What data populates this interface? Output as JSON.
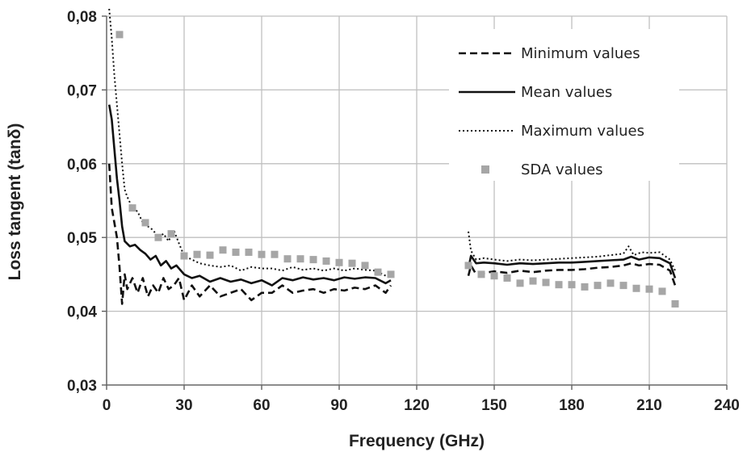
{
  "chart_data": {
    "type": "line",
    "title": "",
    "xlabel": "Frequency (GHz)",
    "ylabel": "Loss tangent (tanδ)",
    "xlim": [
      0,
      240
    ],
    "ylim": [
      0.03,
      0.08
    ],
    "x_ticks": [
      "0",
      "30",
      "60",
      "90",
      "120",
      "150",
      "180",
      "210",
      "240"
    ],
    "y_ticks": [
      "0,03",
      "0,04",
      "0,05",
      "0,06",
      "0,07",
      "0,08"
    ],
    "grid": true,
    "legend_position": "top-right",
    "series": [
      {
        "name": "Minimum values",
        "style": "dashed",
        "color": "#111111",
        "segments": [
          [
            [
              1,
              0.06
            ],
            [
              2,
              0.054
            ],
            [
              3,
              0.052
            ],
            [
              4,
              0.05
            ],
            [
              5,
              0.046
            ],
            [
              6,
              0.041
            ],
            [
              7,
              0.045
            ],
            [
              8,
              0.043
            ],
            [
              10,
              0.0445
            ],
            [
              12,
              0.0425
            ],
            [
              14,
              0.0445
            ],
            [
              16,
              0.042
            ],
            [
              18,
              0.0435
            ],
            [
              20,
              0.0425
            ],
            [
              22,
              0.0445
            ],
            [
              24,
              0.043
            ],
            [
              26,
              0.0435
            ],
            [
              28,
              0.0445
            ],
            [
              30,
              0.0415
            ],
            [
              33,
              0.0435
            ],
            [
              36,
              0.042
            ],
            [
              40,
              0.0435
            ],
            [
              44,
              0.042
            ],
            [
              48,
              0.0425
            ],
            [
              52,
              0.043
            ],
            [
              56,
              0.0415
            ],
            [
              60,
              0.0425
            ],
            [
              64,
              0.0425
            ],
            [
              68,
              0.0435
            ],
            [
              72,
              0.0425
            ],
            [
              76,
              0.0428
            ],
            [
              80,
              0.043
            ],
            [
              84,
              0.0425
            ],
            [
              88,
              0.043
            ],
            [
              92,
              0.0428
            ],
            [
              96,
              0.0432
            ],
            [
              100,
              0.043
            ],
            [
              104,
              0.0435
            ],
            [
              108,
              0.0425
            ],
            [
              110,
              0.0435
            ]
          ],
          [
            [
              140,
              0.0448
            ],
            [
              141,
              0.0462
            ],
            [
              143,
              0.045
            ],
            [
              146,
              0.0452
            ],
            [
              150,
              0.0454
            ],
            [
              155,
              0.0452
            ],
            [
              160,
              0.0455
            ],
            [
              165,
              0.0453
            ],
            [
              170,
              0.0455
            ],
            [
              175,
              0.0456
            ],
            [
              180,
              0.0456
            ],
            [
              185,
              0.0457
            ],
            [
              190,
              0.0459
            ],
            [
              195,
              0.046
            ],
            [
              200,
              0.0462
            ],
            [
              203,
              0.0465
            ],
            [
              206,
              0.0462
            ],
            [
              210,
              0.0464
            ],
            [
              214,
              0.0463
            ],
            [
              218,
              0.0455
            ],
            [
              220,
              0.0435
            ]
          ]
        ]
      },
      {
        "name": "Mean values",
        "style": "solid",
        "color": "#111111",
        "segments": [
          [
            [
              1,
              0.068
            ],
            [
              2,
              0.066
            ],
            [
              3,
              0.062
            ],
            [
              4,
              0.058
            ],
            [
              5,
              0.055
            ],
            [
              6,
              0.0515
            ],
            [
              7,
              0.0495
            ],
            [
              9,
              0.0488
            ],
            [
              11,
              0.049
            ],
            [
              13,
              0.0483
            ],
            [
              15,
              0.0478
            ],
            [
              17,
              0.047
            ],
            [
              19,
              0.0475
            ],
            [
              21,
              0.0462
            ],
            [
              23,
              0.0468
            ],
            [
              25,
              0.0458
            ],
            [
              27,
              0.0462
            ],
            [
              30,
              0.045
            ],
            [
              33,
              0.0445
            ],
            [
              36,
              0.0448
            ],
            [
              40,
              0.044
            ],
            [
              44,
              0.0445
            ],
            [
              48,
              0.044
            ],
            [
              52,
              0.0443
            ],
            [
              56,
              0.0438
            ],
            [
              60,
              0.0442
            ],
            [
              64,
              0.0435
            ],
            [
              68,
              0.0445
            ],
            [
              72,
              0.0442
            ],
            [
              76,
              0.0446
            ],
            [
              80,
              0.0443
            ],
            [
              84,
              0.0445
            ],
            [
              88,
              0.0442
            ],
            [
              92,
              0.0446
            ],
            [
              96,
              0.0444
            ],
            [
              100,
              0.0446
            ],
            [
              104,
              0.0445
            ],
            [
              108,
              0.0438
            ],
            [
              110,
              0.0442
            ]
          ],
          [
            [
              140,
              0.0458
            ],
            [
              141,
              0.0475
            ],
            [
              143,
              0.0465
            ],
            [
              146,
              0.0466
            ],
            [
              150,
              0.0465
            ],
            [
              155,
              0.0463
            ],
            [
              160,
              0.0465
            ],
            [
              165,
              0.0464
            ],
            [
              170,
              0.0465
            ],
            [
              175,
              0.0466
            ],
            [
              180,
              0.0466
            ],
            [
              185,
              0.0467
            ],
            [
              190,
              0.0468
            ],
            [
              195,
              0.0469
            ],
            [
              200,
              0.047
            ],
            [
              203,
              0.0474
            ],
            [
              206,
              0.047
            ],
            [
              210,
              0.0473
            ],
            [
              214,
              0.0472
            ],
            [
              218,
              0.0465
            ],
            [
              220,
              0.0445
            ]
          ]
        ]
      },
      {
        "name": "Maximum values",
        "style": "dotted",
        "color": "#111111",
        "segments": [
          [
            [
              1,
              0.081
            ],
            [
              2,
              0.077
            ],
            [
              3,
              0.072
            ],
            [
              4,
              0.068
            ],
            [
              5,
              0.064
            ],
            [
              6,
              0.06
            ],
            [
              7,
              0.0565
            ],
            [
              8,
              0.0555
            ],
            [
              10,
              0.054
            ],
            [
              12,
              0.0535
            ],
            [
              14,
              0.052
            ],
            [
              16,
              0.0515
            ],
            [
              18,
              0.051
            ],
            [
              20,
              0.05
            ],
            [
              22,
              0.0505
            ],
            [
              24,
              0.0495
            ],
            [
              26,
              0.051
            ],
            [
              28,
              0.0492
            ],
            [
              30,
              0.0475
            ],
            [
              33,
              0.047
            ],
            [
              36,
              0.0465
            ],
            [
              40,
              0.0462
            ],
            [
              44,
              0.046
            ],
            [
              48,
              0.0462
            ],
            [
              52,
              0.0455
            ],
            [
              56,
              0.046
            ],
            [
              60,
              0.0458
            ],
            [
              64,
              0.0458
            ],
            [
              68,
              0.0455
            ],
            [
              72,
              0.046
            ],
            [
              76,
              0.0456
            ],
            [
              80,
              0.0458
            ],
            [
              84,
              0.0455
            ],
            [
              88,
              0.0458
            ],
            [
              92,
              0.0455
            ],
            [
              96,
              0.0458
            ],
            [
              100,
              0.0456
            ],
            [
              104,
              0.0455
            ],
            [
              108,
              0.0448
            ],
            [
              110,
              0.0452
            ]
          ],
          [
            [
              140,
              0.0508
            ],
            [
              141,
              0.0482
            ],
            [
              143,
              0.047
            ],
            [
              146,
              0.0472
            ],
            [
              150,
              0.047
            ],
            [
              155,
              0.0468
            ],
            [
              160,
              0.047
            ],
            [
              165,
              0.0469
            ],
            [
              170,
              0.047
            ],
            [
              175,
              0.0471
            ],
            [
              180,
              0.0472
            ],
            [
              185,
              0.0473
            ],
            [
              190,
              0.0474
            ],
            [
              195,
              0.0476
            ],
            [
              200,
              0.0478
            ],
            [
              202,
              0.0488
            ],
            [
              204,
              0.0476
            ],
            [
              207,
              0.048
            ],
            [
              210,
              0.0479
            ],
            [
              214,
              0.048
            ],
            [
              218,
              0.047
            ],
            [
              220,
              0.0455
            ]
          ]
        ]
      },
      {
        "name": "SDA values",
        "style": "markers",
        "color": "#a6a6a6",
        "points": [
          [
            5,
            0.0775
          ],
          [
            10,
            0.054
          ],
          [
            15,
            0.052
          ],
          [
            20,
            0.05
          ],
          [
            25,
            0.0505
          ],
          [
            30,
            0.0475
          ],
          [
            35,
            0.0477
          ],
          [
            40,
            0.0476
          ],
          [
            45,
            0.0483
          ],
          [
            50,
            0.048
          ],
          [
            55,
            0.048
          ],
          [
            60,
            0.0477
          ],
          [
            65,
            0.0477
          ],
          [
            70,
            0.0471
          ],
          [
            75,
            0.0471
          ],
          [
            80,
            0.047
          ],
          [
            85,
            0.0468
          ],
          [
            90,
            0.0466
          ],
          [
            95,
            0.0465
          ],
          [
            100,
            0.0462
          ],
          [
            105,
            0.0453
          ],
          [
            110,
            0.045
          ],
          [
            140,
            0.0462
          ],
          [
            145,
            0.045
          ],
          [
            150,
            0.0448
          ],
          [
            155,
            0.0445
          ],
          [
            160,
            0.0438
          ],
          [
            165,
            0.0441
          ],
          [
            170,
            0.0439
          ],
          [
            175,
            0.0436
          ],
          [
            180,
            0.0436
          ],
          [
            185,
            0.0433
          ],
          [
            190,
            0.0435
          ],
          [
            195,
            0.0438
          ],
          [
            200,
            0.0435
          ],
          [
            205,
            0.0431
          ],
          [
            210,
            0.043
          ],
          [
            215,
            0.0427
          ],
          [
            220,
            0.041
          ]
        ]
      }
    ]
  }
}
